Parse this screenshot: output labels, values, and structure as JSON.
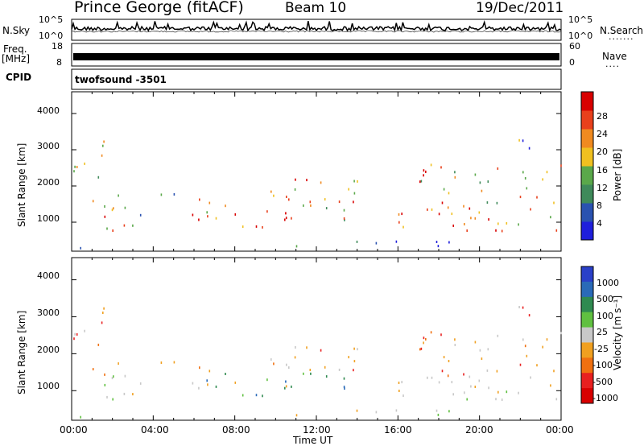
{
  "header": {
    "station": "Prince George (fitACF)",
    "beam": "Beam 10",
    "date": "19/Dec/2011"
  },
  "top_panels": {
    "nsky_label": "N.Sky",
    "nsky_tick_top": "10^5",
    "nsky_tick_bottom": "10^0",
    "nsky_right_tick_top": "10^5",
    "nsky_right_tick_bottom": "10^0",
    "nsearch_label": "N.Search",
    "nsearch_dots": ".......",
    "freq_label": "Freq.",
    "freq_unit": "[MHz]",
    "freq_tick_top": "18",
    "freq_tick_bottom": "8",
    "nave_tick_top": "60",
    "nave_tick_bottom": "0",
    "nave_label": "Nave",
    "nave_dots": "....",
    "cpid_label": "CPID",
    "cpid_value": "twofsound -3501"
  },
  "chart_data": [
    {
      "type": "heatmap",
      "name": "power",
      "xlabel": "",
      "ylabel": "Slant Range [km]",
      "x_ticks": [
        "00:00",
        "04:00",
        "08:00",
        "12:00",
        "16:00",
        "20:00",
        "00:00"
      ],
      "y_ticks": [
        "1000",
        "2000",
        "3000",
        "4000"
      ],
      "ylim": [
        200,
        4600
      ],
      "colorbar_label": "Power [dB]",
      "colorbar_ticks": [
        "28",
        "24",
        "20",
        "16",
        "12",
        "8",
        "4"
      ],
      "colors": [
        "#1f1fdc",
        "#2a52b0",
        "#3f8a5a",
        "#5aa84a",
        "#f0c020",
        "#f08a20",
        "#e8401c",
        "#d80000"
      ]
    },
    {
      "type": "heatmap",
      "name": "velocity",
      "xlabel": "Time UT",
      "ylabel": "Slant Range [km]",
      "x_ticks": [
        "00:00",
        "04:00",
        "08:00",
        "12:00",
        "16:00",
        "20:00",
        "00:00"
      ],
      "y_ticks": [
        "1000",
        "2000",
        "3000",
        "4000"
      ],
      "ylim": [
        200,
        4600
      ],
      "colorbar_label": "Velocity [m s⁻¹]",
      "colorbar_ticks": [
        "1000",
        "500",
        "100",
        "25",
        "-25",
        "-100",
        "-500",
        "-1000"
      ],
      "colors": [
        "#2a40c8",
        "#2a6ab8",
        "#2f8a50",
        "#60c040",
        "#c8c8c8",
        "#f0a020",
        "#f07010",
        "#e82020",
        "#d80000"
      ]
    }
  ]
}
